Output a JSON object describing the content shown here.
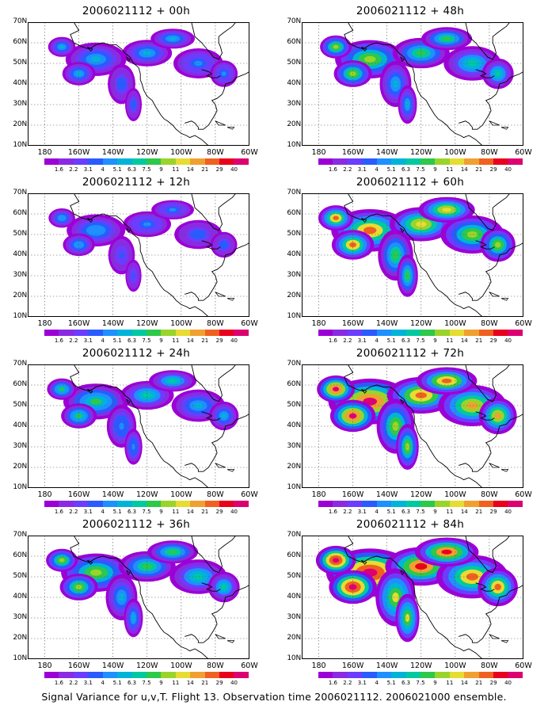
{
  "caption": "Signal Variance for u,v,T. Flight 13. Observation time 2006021112. 2006021000 ensemble.",
  "panels": [
    {
      "title": "2006021112 + 00h",
      "intensity": 0.35
    },
    {
      "title": "2006021112 + 48h",
      "intensity": 0.55
    },
    {
      "title": "2006021112 + 12h",
      "intensity": 0.3
    },
    {
      "title": "2006021112 + 60h",
      "intensity": 0.72
    },
    {
      "title": "2006021112 + 24h",
      "intensity": 0.45
    },
    {
      "title": "2006021112 + 72h",
      "intensity": 0.85
    },
    {
      "title": "2006021112 + 36h",
      "intensity": 0.55
    },
    {
      "title": "2006021112 + 84h",
      "intensity": 0.95
    }
  ],
  "lat_labels": [
    "70N",
    "60N",
    "50N",
    "40N",
    "30N",
    "20N",
    "10N"
  ],
  "lon_labels": [
    "180",
    "160W",
    "140W",
    "120W",
    "100W",
    "80W",
    "60W"
  ],
  "colorbar": {
    "labels": [
      "1.6",
      "2.2",
      "3.1",
      "4",
      "5.1",
      "6.3",
      "7.5",
      "9",
      "11",
      "14",
      "21",
      "29",
      "40"
    ],
    "colors": [
      "#9c00d6",
      "#8a2be2",
      "#6a3dff",
      "#2a5bff",
      "#1e90ff",
      "#00b4d8",
      "#00c9a0",
      "#2ec84a",
      "#9ad42a",
      "#e6dc32",
      "#f0a030",
      "#f06020",
      "#e8001c",
      "#dc0070"
    ]
  }
}
